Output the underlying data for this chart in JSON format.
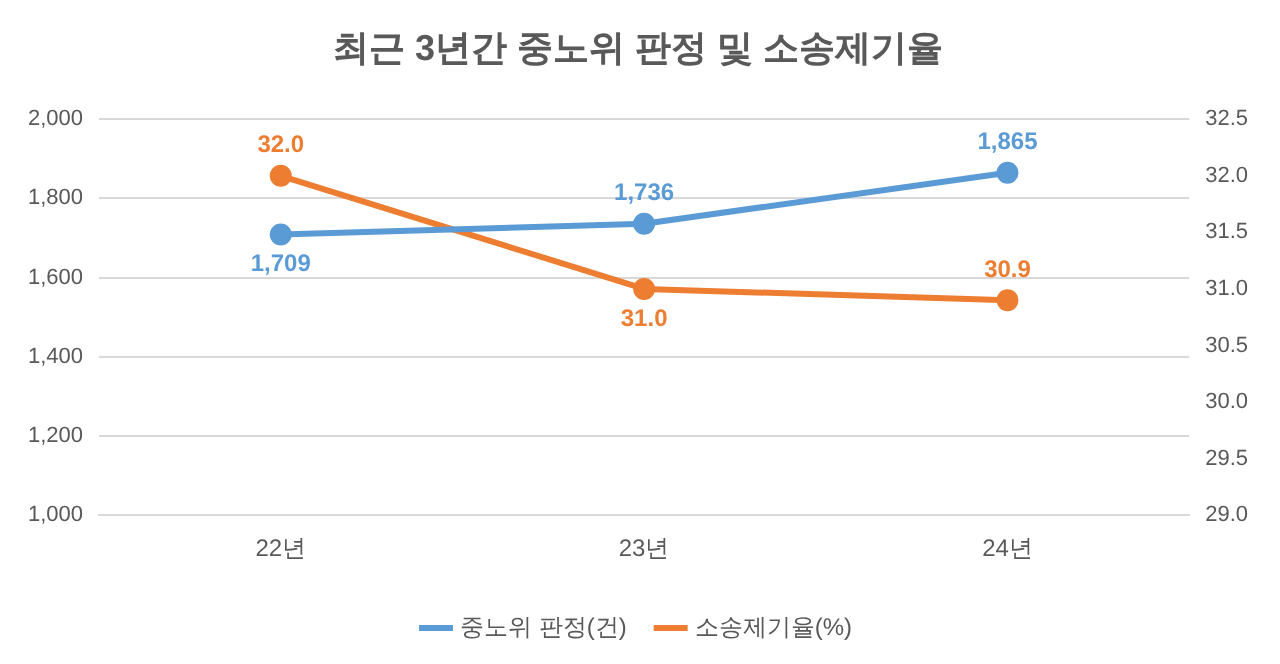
{
  "chart_data": {
    "type": "line",
    "title": "최근 3년간 중노위 판정 및 소송제기율",
    "categories": [
      "22년",
      "23년",
      "24년"
    ],
    "series": [
      {
        "name": "중노위 판정(건)",
        "color": "#5b9bd5",
        "values": [
          1709,
          1736,
          1865
        ],
        "value_labels": [
          "1,709",
          "1,736",
          "1,865"
        ]
      },
      {
        "name": "소송제기율(%)",
        "color": "#ed7d31",
        "values": [
          32.0,
          31.0,
          30.9
        ],
        "value_labels": [
          "32.0",
          "31.0",
          "30.9"
        ],
        "axis": "y2"
      }
    ],
    "ylim": [
      1000,
      2000
    ],
    "yticks": [
      {
        "value": 1000,
        "label": "1,000"
      },
      {
        "value": 1200,
        "label": "1,200"
      },
      {
        "value": 1400,
        "label": "1,400"
      },
      {
        "value": 1600,
        "label": "1,600"
      },
      {
        "value": 1800,
        "label": "1,800"
      },
      {
        "value": 2000,
        "label": "2,000"
      }
    ],
    "y2lim": [
      29.0,
      32.5
    ],
    "y2ticks": [
      {
        "value": 29,
        "label": "29.0"
      },
      {
        "value": 29.5,
        "label": "29.5"
      },
      {
        "value": 30,
        "label": "30.0"
      },
      {
        "value": 30.5,
        "label": "30.5"
      },
      {
        "value": 31,
        "label": "31.0"
      },
      {
        "value": 31.5,
        "label": "31.5"
      },
      {
        "value": 32,
        "label": "32.0"
      },
      {
        "value": 32.5,
        "label": "32.5"
      }
    ],
    "grid": "y",
    "legend": "bottom",
    "marker": "circle",
    "line_style": "solid"
  }
}
